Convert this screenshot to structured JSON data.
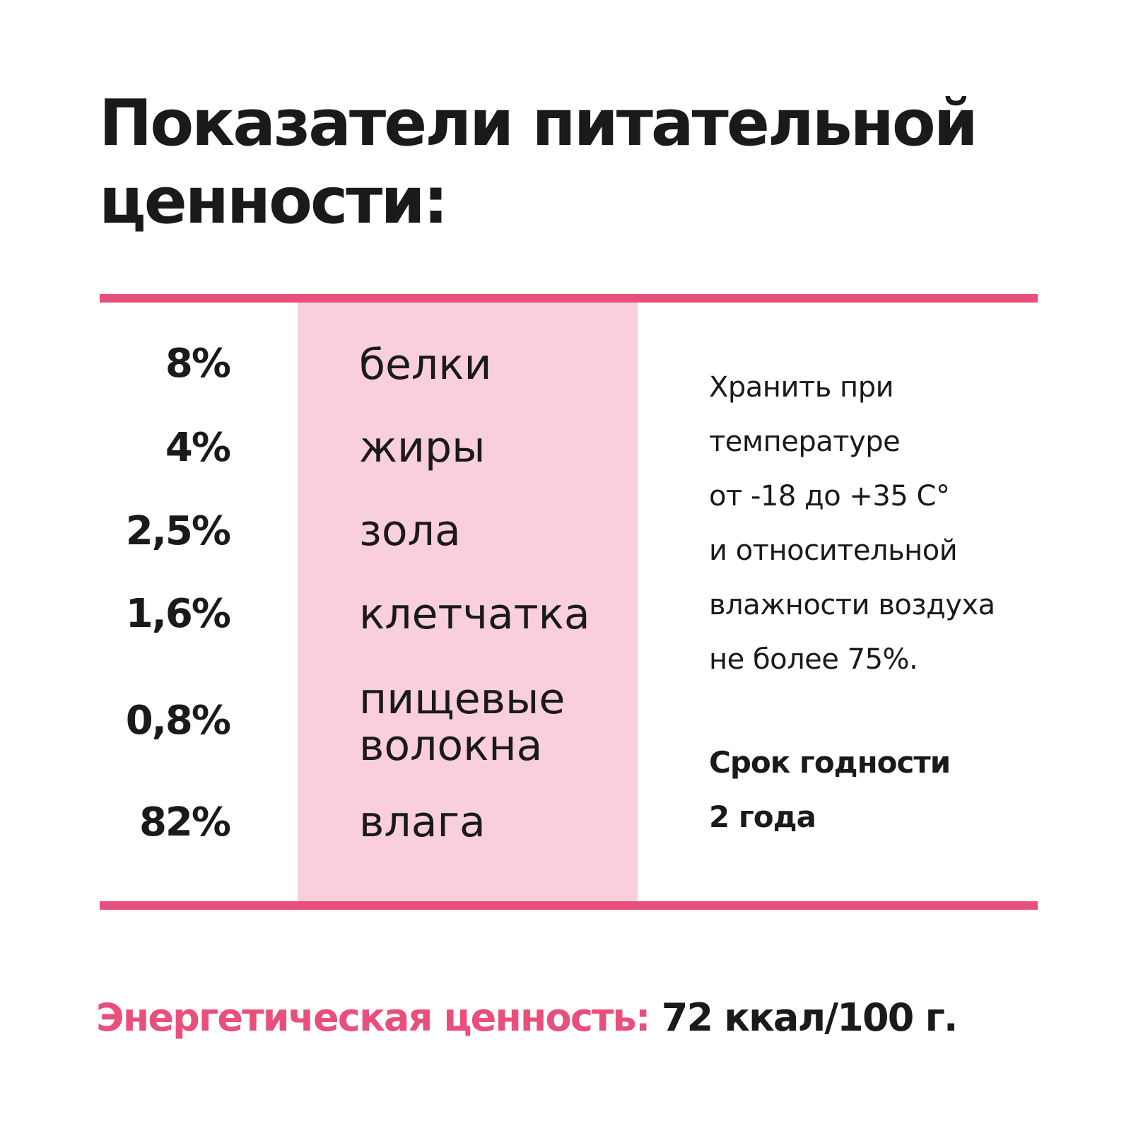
{
  "title": {
    "line1": "Показатели питательной",
    "line2": "ценности:"
  },
  "nutrients": [
    {
      "value": "8%",
      "name": "белки"
    },
    {
      "value": "4%",
      "name": "жиры"
    },
    {
      "value": "2,5%",
      "name": "зола"
    },
    {
      "value": "1,6%",
      "name": "клетчатка"
    },
    {
      "value": "0,8%",
      "name_line1": "пищевые",
      "name_line2": "волокна"
    },
    {
      "value": "82%",
      "name": "влага"
    }
  ],
  "storage": {
    "lines": [
      "Хранить при",
      "температуре",
      "от -18 до +35 С°",
      "и относительной",
      "влажности воздуха",
      "не более 75%."
    ]
  },
  "shelf_life": {
    "line1": "Срок годности",
    "line2": "2 года"
  },
  "energy": {
    "label": "Энергетическая ценность:",
    "value": "72 ккал/100 г."
  },
  "colors": {
    "accent": "#e94f7b",
    "column_bg": "#f8cfda",
    "text": "#1a1a1a"
  }
}
